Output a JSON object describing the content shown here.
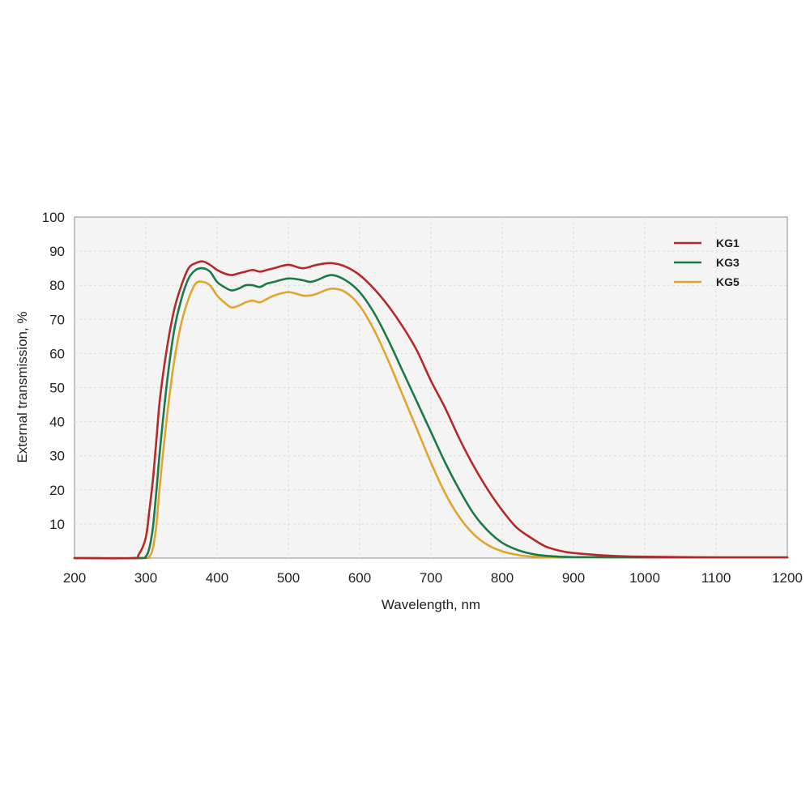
{
  "chart_data": {
    "type": "line",
    "xlabel": "Wavelength, nm",
    "ylabel": "External transmission, %",
    "xlim": [
      200,
      1200
    ],
    "ylim": [
      0,
      100
    ],
    "x_ticks": [
      "200",
      "300",
      "400",
      "500",
      "600",
      "700",
      "800",
      "900",
      "1000",
      "1100",
      "1200"
    ],
    "y_ticks": [
      "10",
      "20",
      "30",
      "40",
      "50",
      "60",
      "70",
      "80",
      "90",
      "100"
    ],
    "grid": true,
    "legend_position": "top-right",
    "series": [
      {
        "name": "KG1",
        "color": "#b5292b",
        "points": [
          [
            200,
            0
          ],
          [
            280,
            0
          ],
          [
            290,
            1
          ],
          [
            300,
            6
          ],
          [
            305,
            14
          ],
          [
            310,
            23
          ],
          [
            315,
            35
          ],
          [
            320,
            47
          ],
          [
            330,
            62
          ],
          [
            340,
            73
          ],
          [
            350,
            80
          ],
          [
            360,
            85
          ],
          [
            370,
            86.5
          ],
          [
            380,
            87
          ],
          [
            390,
            86
          ],
          [
            400,
            84.5
          ],
          [
            410,
            83.5
          ],
          [
            420,
            83
          ],
          [
            430,
            83.5
          ],
          [
            440,
            84
          ],
          [
            450,
            84.5
          ],
          [
            460,
            84
          ],
          [
            470,
            84.5
          ],
          [
            480,
            85
          ],
          [
            500,
            86
          ],
          [
            520,
            85
          ],
          [
            540,
            86
          ],
          [
            560,
            86.5
          ],
          [
            580,
            85.5
          ],
          [
            600,
            83
          ],
          [
            620,
            79
          ],
          [
            640,
            74
          ],
          [
            660,
            68
          ],
          [
            680,
            61
          ],
          [
            700,
            52
          ],
          [
            720,
            44
          ],
          [
            740,
            35
          ],
          [
            760,
            27
          ],
          [
            780,
            20
          ],
          [
            800,
            14
          ],
          [
            820,
            9
          ],
          [
            840,
            6
          ],
          [
            860,
            3.5
          ],
          [
            880,
            2.2
          ],
          [
            900,
            1.5
          ],
          [
            950,
            0.7
          ],
          [
            1000,
            0.4
          ],
          [
            1100,
            0.2
          ],
          [
            1200,
            0.2
          ]
        ]
      },
      {
        "name": "KG3",
        "color": "#1c7a4a",
        "points": [
          [
            200,
            0
          ],
          [
            290,
            0
          ],
          [
            300,
            0.5
          ],
          [
            305,
            3
          ],
          [
            310,
            9
          ],
          [
            315,
            20
          ],
          [
            320,
            32
          ],
          [
            330,
            52
          ],
          [
            340,
            67
          ],
          [
            350,
            76
          ],
          [
            360,
            82
          ],
          [
            370,
            84.5
          ],
          [
            380,
            85
          ],
          [
            390,
            84
          ],
          [
            400,
            81
          ],
          [
            410,
            79.5
          ],
          [
            420,
            78.5
          ],
          [
            430,
            79
          ],
          [
            440,
            80
          ],
          [
            450,
            80
          ],
          [
            460,
            79.5
          ],
          [
            470,
            80.5
          ],
          [
            480,
            81
          ],
          [
            500,
            82
          ],
          [
            520,
            81.5
          ],
          [
            530,
            81
          ],
          [
            540,
            81.5
          ],
          [
            560,
            83
          ],
          [
            580,
            81.5
          ],
          [
            600,
            78
          ],
          [
            620,
            72
          ],
          [
            640,
            64
          ],
          [
            660,
            55
          ],
          [
            680,
            46
          ],
          [
            700,
            37
          ],
          [
            720,
            28
          ],
          [
            740,
            20
          ],
          [
            760,
            13
          ],
          [
            780,
            8
          ],
          [
            800,
            4.5
          ],
          [
            820,
            2.5
          ],
          [
            840,
            1.3
          ],
          [
            860,
            0.7
          ],
          [
            900,
            0.3
          ],
          [
            1000,
            0.2
          ],
          [
            1200,
            0.2
          ]
        ]
      },
      {
        "name": "KG5",
        "color": "#e0a52c",
        "points": [
          [
            200,
            0
          ],
          [
            295,
            0
          ],
          [
            305,
            0.5
          ],
          [
            310,
            3
          ],
          [
            315,
            10
          ],
          [
            320,
            22
          ],
          [
            330,
            42
          ],
          [
            340,
            58
          ],
          [
            350,
            69
          ],
          [
            360,
            76
          ],
          [
            370,
            80.5
          ],
          [
            380,
            81
          ],
          [
            390,
            80
          ],
          [
            400,
            77
          ],
          [
            410,
            75
          ],
          [
            420,
            73.5
          ],
          [
            430,
            74
          ],
          [
            440,
            75
          ],
          [
            450,
            75.5
          ],
          [
            460,
            75
          ],
          [
            470,
            76
          ],
          [
            480,
            77
          ],
          [
            500,
            78
          ],
          [
            520,
            77
          ],
          [
            530,
            77
          ],
          [
            540,
            77.5
          ],
          [
            560,
            79
          ],
          [
            580,
            78
          ],
          [
            600,
            74
          ],
          [
            620,
            67
          ],
          [
            640,
            58
          ],
          [
            660,
            48
          ],
          [
            680,
            38
          ],
          [
            700,
            28
          ],
          [
            720,
            19
          ],
          [
            740,
            12
          ],
          [
            760,
            7
          ],
          [
            780,
            3.8
          ],
          [
            800,
            2
          ],
          [
            820,
            1
          ],
          [
            840,
            0.5
          ],
          [
            900,
            0.2
          ],
          [
            1200,
            0.2
          ]
        ]
      }
    ]
  }
}
